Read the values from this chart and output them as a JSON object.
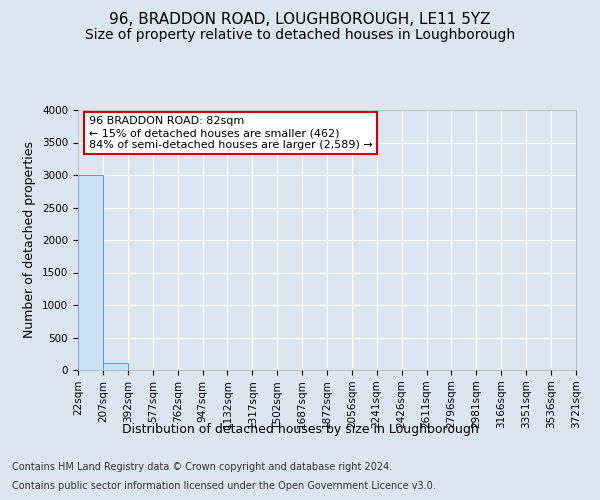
{
  "title": "96, BRADDON ROAD, LOUGHBOROUGH, LE11 5YZ",
  "subtitle": "Size of property relative to detached houses in Loughborough",
  "xlabel": "Distribution of detached houses by size in Loughborough",
  "ylabel": "Number of detached properties",
  "footer_line1": "Contains HM Land Registry data © Crown copyright and database right 2024.",
  "footer_line2": "Contains public sector information licensed under the Open Government Licence v3.0.",
  "bar_edges": [
    22,
    207,
    392,
    577,
    762,
    947,
    1132,
    1317,
    1502,
    1687,
    1872,
    2056,
    2241,
    2426,
    2611,
    2796,
    2981,
    3166,
    3351,
    3536,
    3721
  ],
  "bar_heights": [
    3000,
    110,
    0,
    0,
    0,
    0,
    0,
    0,
    0,
    0,
    0,
    0,
    0,
    0,
    0,
    0,
    0,
    0,
    0,
    0
  ],
  "bar_color": "#cce0f5",
  "bar_edge_color": "#5b9bd5",
  "annotation_text": "96 BRADDON ROAD: 82sqm\n← 15% of detached houses are smaller (462)\n84% of semi-detached houses are larger (2,589) →",
  "annotation_box_color": "#ffffff",
  "annotation_box_edge": "#cc0000",
  "ylim": [
    0,
    4000
  ],
  "yticks": [
    0,
    500,
    1000,
    1500,
    2000,
    2500,
    3000,
    3500,
    4000
  ],
  "bg_color": "#dce6f1",
  "plot_bg_color": "#dce6f1",
  "grid_color": "#ffffff",
  "title_fontsize": 11,
  "subtitle_fontsize": 10,
  "ylabel_fontsize": 9,
  "xlabel_fontsize": 9,
  "tick_fontsize": 7.5,
  "footer_fontsize": 7,
  "ann_fontsize": 8
}
